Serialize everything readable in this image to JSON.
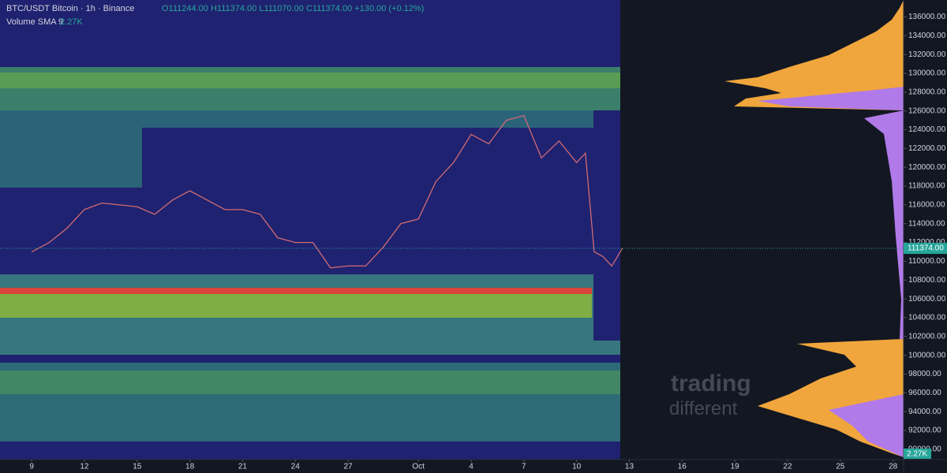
{
  "header": {
    "symbol": "BTC/USDT Bitcoin · 1h · Binance",
    "ohlc": "O111244.00 H111374.00 L111070.00 C111374.00 +130.00 (+0.12%)",
    "indicator": "Volume SMA 9",
    "indicator_value": "2.27K"
  },
  "watermark": [
    "trading",
    "different"
  ],
  "price_label": "111374.00",
  "volume_label": "2.27K",
  "chart_data": {
    "type": "line",
    "color": "#d06a74",
    "x": [
      0,
      1,
      2,
      3,
      4,
      5,
      6,
      7,
      8,
      9,
      10,
      11,
      12,
      13,
      14,
      15,
      16,
      17,
      18,
      19,
      20,
      21,
      22,
      23,
      24,
      25,
      26,
      27,
      28,
      29,
      30,
      31,
      31.5,
      32,
      32.5,
      33,
      33.6
    ],
    "series": [
      {
        "name": "BTC/USDT",
        "color": "#d06a74",
        "values": [
          111000,
          112000,
          113500,
          115500,
          116200,
          116000,
          115800,
          115000,
          116500,
          117500,
          116500,
          115500,
          115500,
          115000,
          112500,
          112000,
          112000,
          109300,
          109500,
          109500,
          111500,
          114000,
          114500,
          118500,
          120500,
          123500,
          122500,
          125000,
          125500,
          121000,
          122800,
          120500,
          121500,
          111000,
          110500,
          109500,
          111374
        ]
      }
    ],
    "xlim": [
      -1.8,
      49.6
    ],
    "xticks": [
      {
        "value": 0,
        "label": "9"
      },
      {
        "value": 3,
        "label": "12"
      },
      {
        "value": 6,
        "label": "15"
      },
      {
        "value": 9,
        "label": "18"
      },
      {
        "value": 12,
        "label": "21"
      },
      {
        "value": 15,
        "label": "24"
      },
      {
        "value": 18,
        "label": "27"
      },
      {
        "value": 22,
        "label": "Oct"
      },
      {
        "value": 25,
        "label": "4"
      },
      {
        "value": 28,
        "label": "7"
      },
      {
        "value": 31,
        "label": "10"
      },
      {
        "value": 34,
        "label": "13"
      },
      {
        "value": 37,
        "label": "16"
      },
      {
        "value": 40,
        "label": "19"
      },
      {
        "value": 43,
        "label": "22"
      },
      {
        "value": 46,
        "label": "25"
      },
      {
        "value": 49,
        "label": "28"
      }
    ],
    "ylim": [
      88900,
      137800
    ],
    "yticks": [
      {
        "value": 90000,
        "label": "90000.00"
      },
      {
        "value": 92000,
        "label": "92000.00"
      },
      {
        "value": 94000,
        "label": "94000.00"
      },
      {
        "value": 96000,
        "label": "96000.00"
      },
      {
        "value": 98000,
        "label": "98000.00"
      },
      {
        "value": 100000,
        "label": "100000.00"
      },
      {
        "value": 102000,
        "label": "102000.00"
      },
      {
        "value": 104000,
        "label": "104000.00"
      },
      {
        "value": 106000,
        "label": "106000.00"
      },
      {
        "value": 108000,
        "label": "108000.00"
      },
      {
        "value": 110000,
        "label": "110000.00"
      },
      {
        "value": 112000,
        "label": "112000.00"
      },
      {
        "value": 114000,
        "label": "114000.00"
      },
      {
        "value": 116000,
        "label": "116000.00"
      },
      {
        "value": 118000,
        "label": "118000.00"
      },
      {
        "value": 120000,
        "label": "120000.00"
      },
      {
        "value": 122000,
        "label": "122000.00"
      },
      {
        "value": 124000,
        "label": "124000.00"
      },
      {
        "value": 126000,
        "label": "126000.00"
      },
      {
        "value": 128000,
        "label": "128000.00"
      },
      {
        "value": 130000,
        "label": "130000.00"
      },
      {
        "value": 132000,
        "label": "132000.00"
      },
      {
        "value": 134000,
        "label": "134000.00"
      },
      {
        "value": 136000,
        "label": "136000.00"
      }
    ],
    "grid": false
  }
}
